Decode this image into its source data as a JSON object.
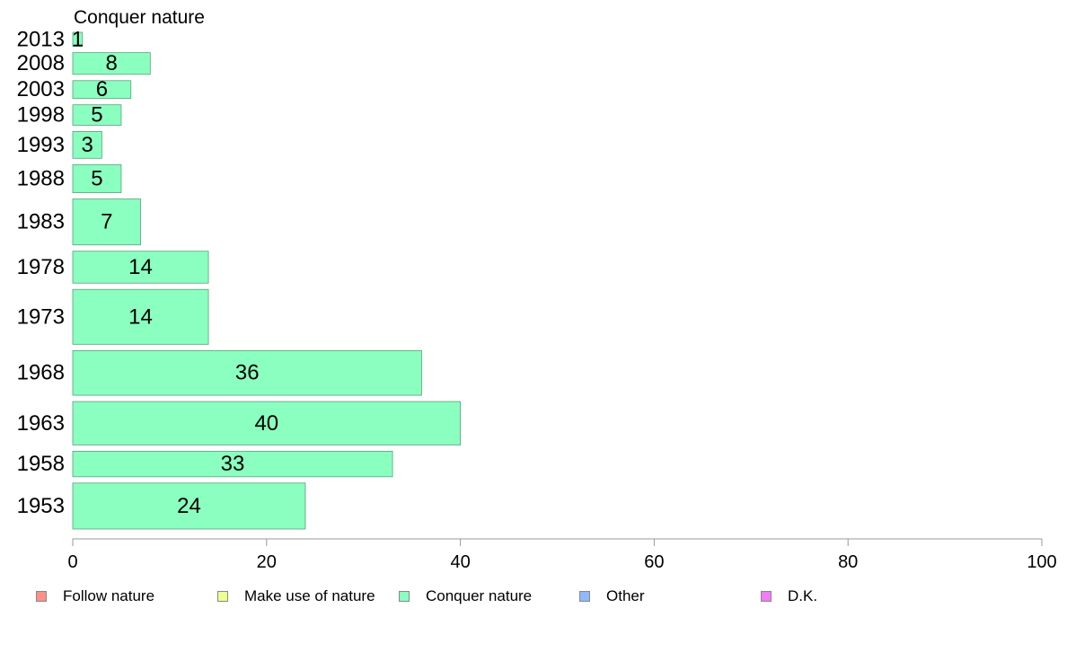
{
  "chart_data": {
    "type": "bar",
    "orientation": "horizontal",
    "panel_title": "Conquer nature",
    "categories": [
      "2013",
      "2008",
      "2003",
      "1998",
      "1993",
      "1988",
      "1983",
      "1978",
      "1973",
      "1968",
      "1963",
      "1958",
      "1953"
    ],
    "values": [
      1,
      8,
      6,
      5,
      3,
      5,
      7,
      14,
      14,
      36,
      40,
      33,
      24
    ],
    "value_labels": [
      "1",
      "8",
      "6",
      "5",
      "3",
      "5",
      "7",
      "14",
      "14",
      "36",
      "40",
      "33",
      "24"
    ],
    "bar_weights": [
      0.55,
      0.85,
      0.7,
      0.8,
      1.05,
      1.1,
      1.8,
      1.25,
      2.15,
      1.75,
      1.7,
      1.0,
      1.8
    ],
    "xlim": [
      0,
      100
    ],
    "xticks": [
      "0",
      "20",
      "40",
      "60",
      "80",
      "100"
    ],
    "grid": false,
    "bar_color": "#8affbf",
    "bar_edge_color": "#5aa07c",
    "legend_position": "bottom",
    "legend": [
      {
        "label": "Follow nature",
        "color": "#ff8f8a"
      },
      {
        "label": "Make use of nature",
        "color": "#eeff90"
      },
      {
        "label": "Conquer nature",
        "color": "#8affbf"
      },
      {
        "label": "Other",
        "color": "#8fb8ff"
      },
      {
        "label": "D.K.",
        "color": "#f07cf7"
      }
    ]
  }
}
